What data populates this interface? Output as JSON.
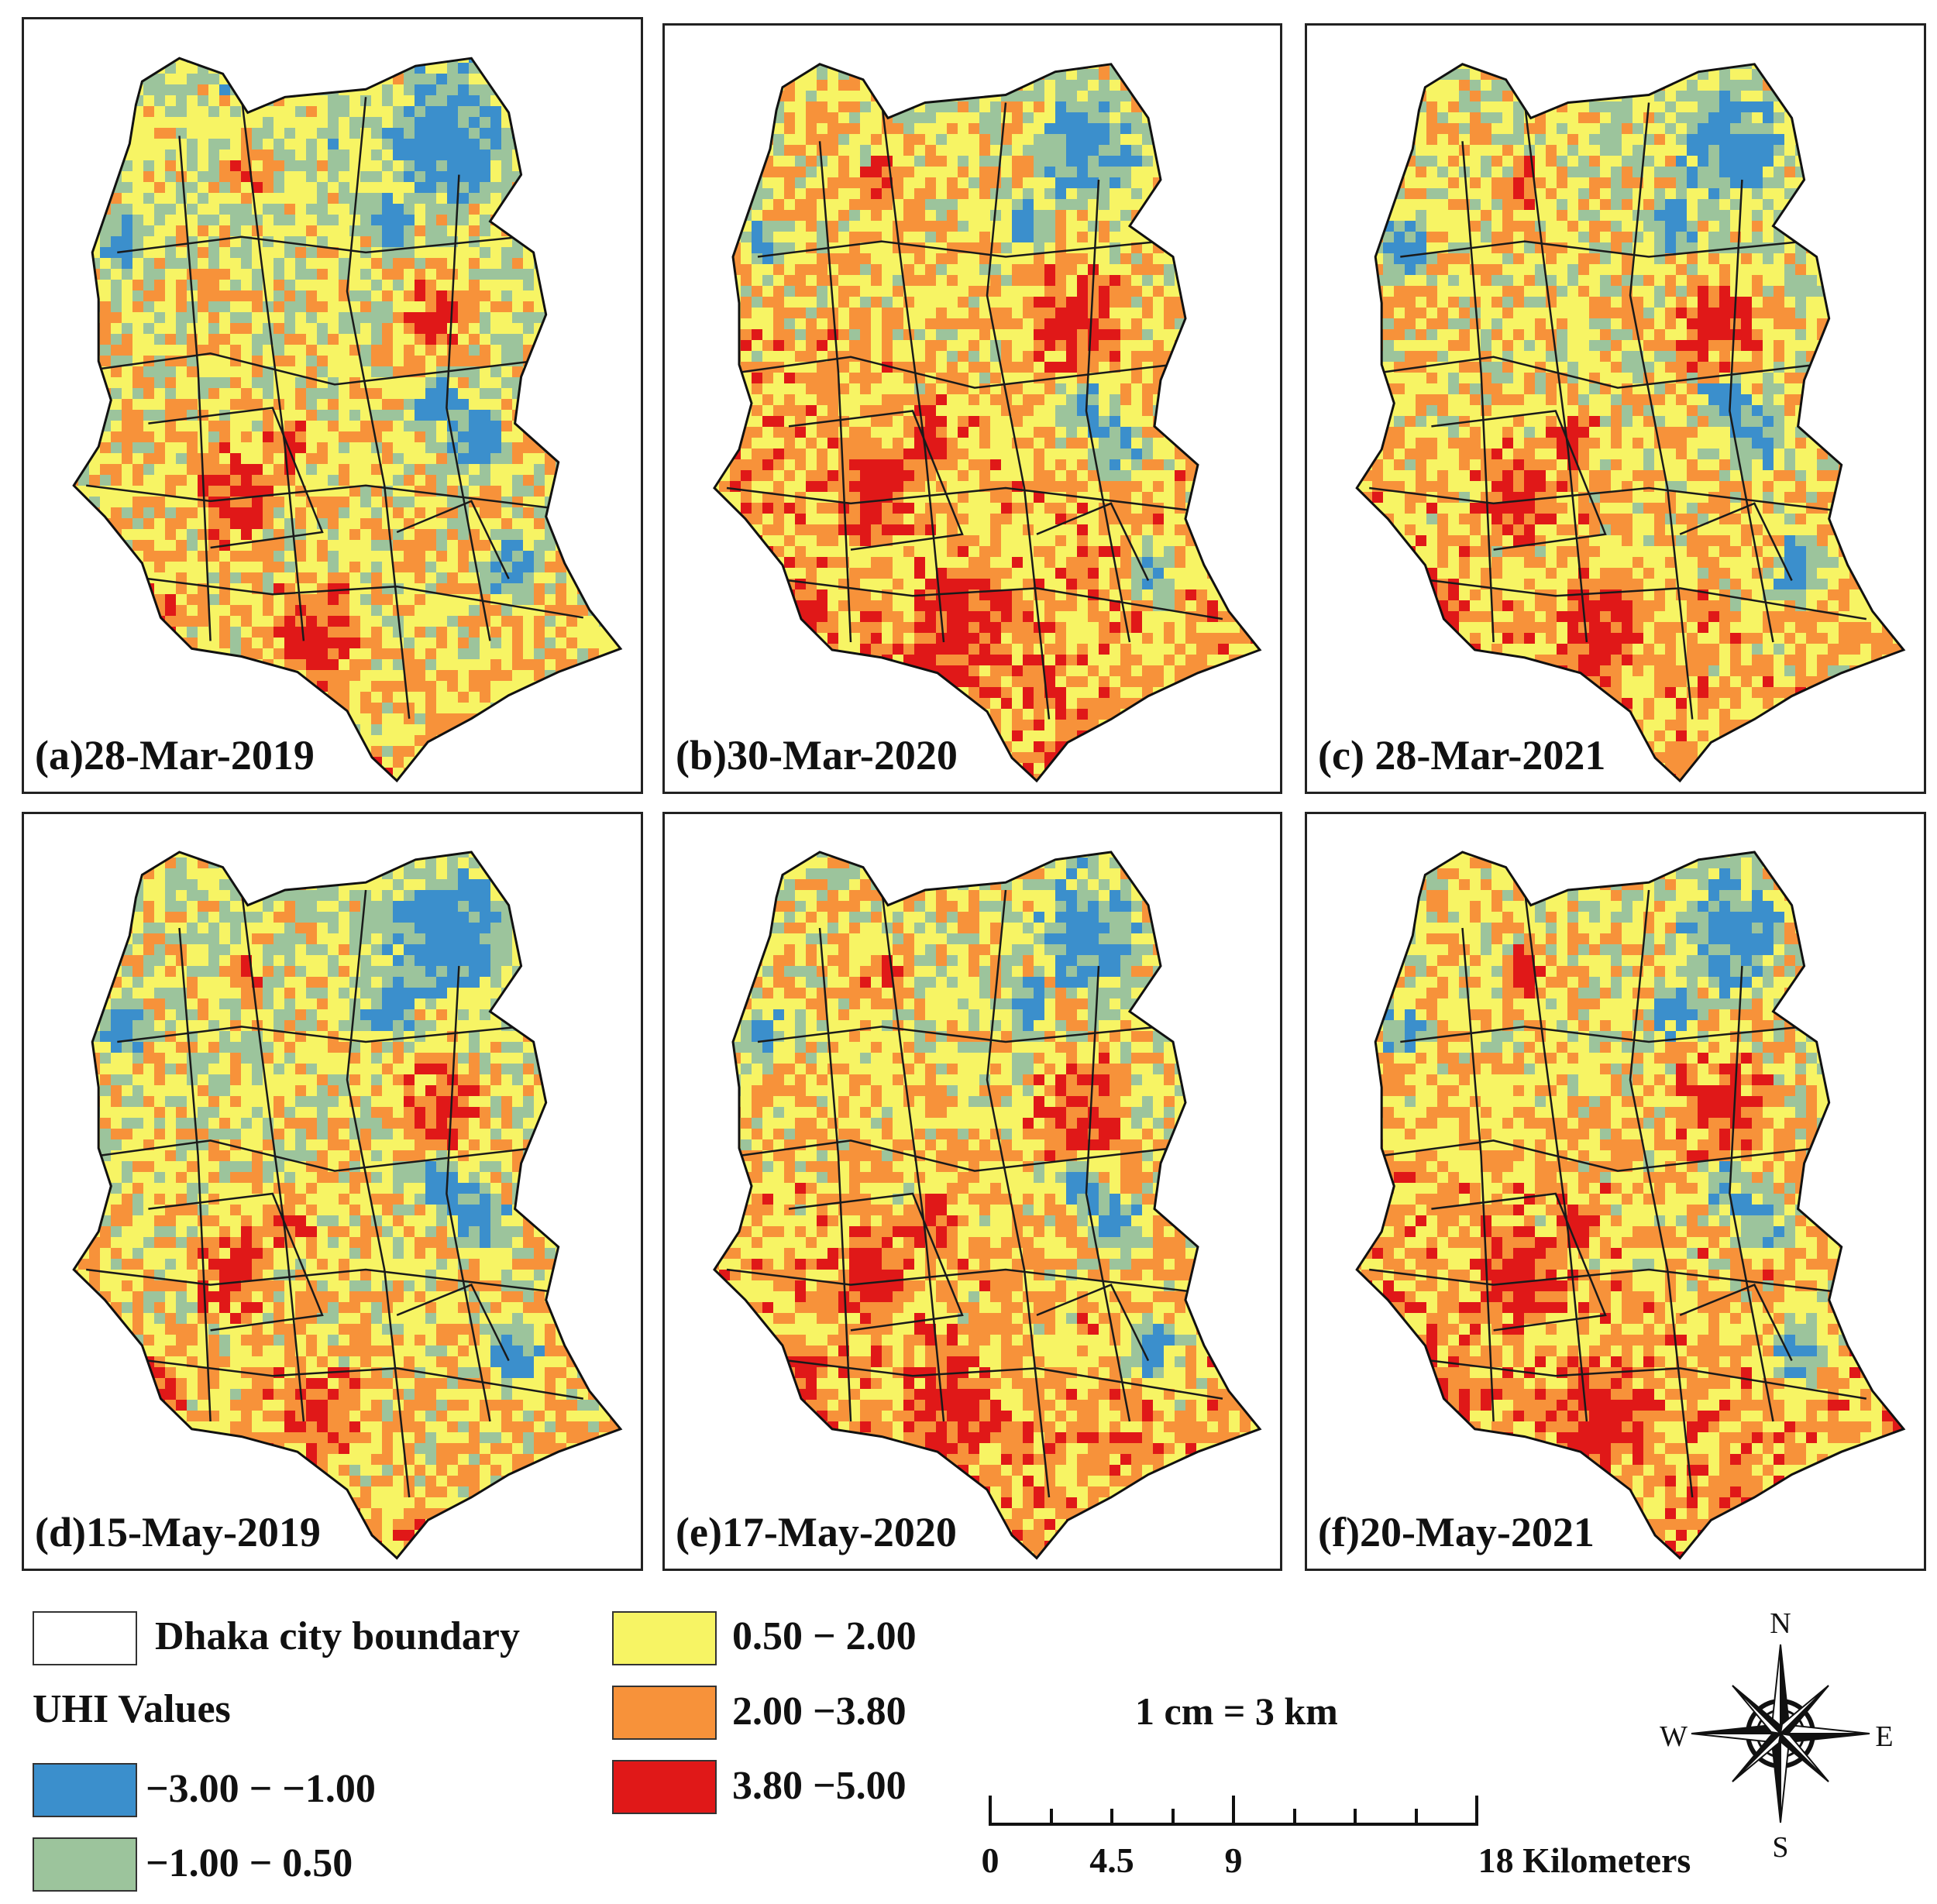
{
  "panels": [
    {
      "label": "(a)28-Mar-2019"
    },
    {
      "label": "(b)30-Mar-2020"
    },
    {
      "label": "(c) 28-Mar-2021"
    },
    {
      "label": "(d)15-May-2019"
    },
    {
      "label": "(e)17-May-2020"
    },
    {
      "label": "(f)20-May-2021"
    }
  ],
  "legend": {
    "boundary_label": "Dhaka city boundary",
    "uhi_title": "UHI Values",
    "classes": [
      {
        "range": "−3.00 − −1.00",
        "color": "#3b8fcc"
      },
      {
        "range": "−1.00 − 0.50",
        "color": "#9cc49c"
      },
      {
        "range": "0.50 − 2.00",
        "color": "#f7f464"
      },
      {
        "range": "2.00 −3.80",
        "color": "#f7923a"
      },
      {
        "range": "3.80 −5.00",
        "color": "#e01818"
      }
    ]
  },
  "scale": {
    "ratio": "1 cm = 3 km",
    "ticks": [
      "0",
      "4.5",
      "9",
      "18 Kilometers"
    ]
  },
  "compass": {
    "n": "N",
    "s": "S",
    "e": "E",
    "w": "W"
  }
}
